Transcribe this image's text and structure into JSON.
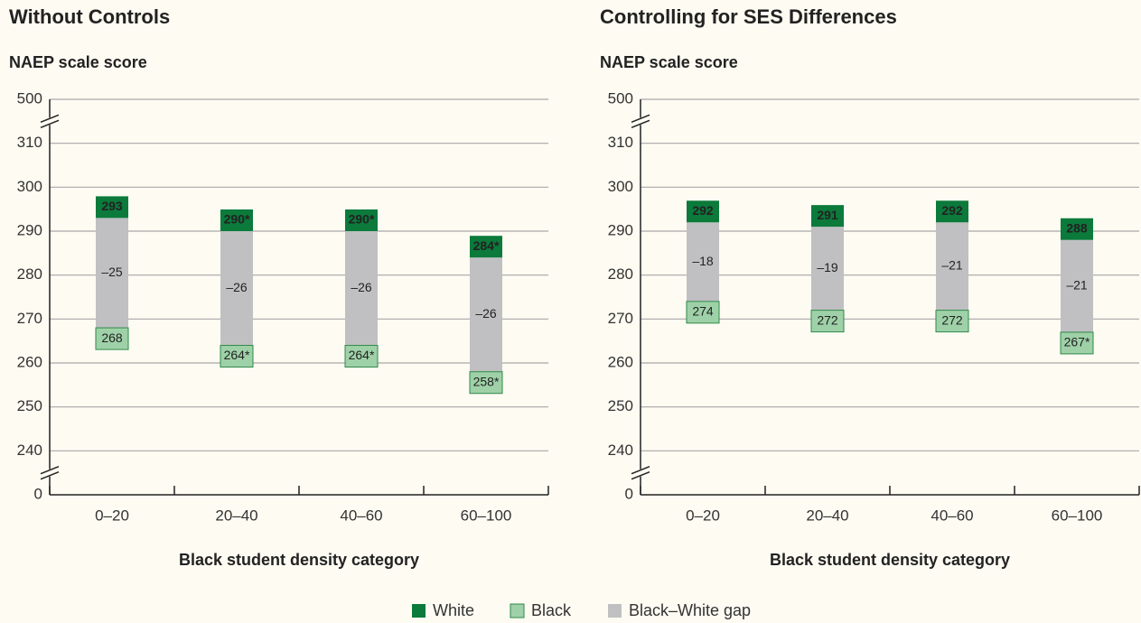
{
  "legend": [
    {
      "name": "White",
      "color": "#0b7a3b"
    },
    {
      "name": "Black",
      "color": "#9fd1a8"
    },
    {
      "name": "Black–White gap",
      "color": "#c0c0c2"
    }
  ],
  "chart_data": [
    {
      "type": "range",
      "title": "Without Controls",
      "ylabel": "NAEP scale score",
      "xlabel": "Black student density category",
      "categories": [
        "0–20",
        "20–40",
        "40–60",
        "60–100"
      ],
      "ylim": [
        0,
        500
      ],
      "yticks": [
        0,
        240,
        250,
        260,
        270,
        280,
        290,
        300,
        310,
        500
      ],
      "axis_breaks": true,
      "grid": true,
      "series": [
        {
          "values": [
            293,
            290,
            290,
            284
          ],
          "value_labels": [
            "293",
            "290*",
            "290*",
            "284*"
          ]
        },
        {
          "values": [
            268,
            264,
            264,
            258
          ],
          "value_labels": [
            "268",
            "264*",
            "264*",
            "258*"
          ]
        },
        {
          "values": [
            -25,
            -26,
            -26,
            -26
          ],
          "value_labels": [
            "–25",
            "–26",
            "–26",
            "–26"
          ]
        }
      ]
    },
    {
      "type": "range",
      "title": "Controlling for SES Differences",
      "ylabel": "NAEP scale score",
      "xlabel": "Black student density category",
      "categories": [
        "0–20",
        "20–40",
        "40–60",
        "60–100"
      ],
      "ylim": [
        0,
        500
      ],
      "yticks": [
        0,
        240,
        250,
        260,
        270,
        280,
        290,
        300,
        310,
        500
      ],
      "axis_breaks": true,
      "grid": true,
      "series": [
        {
          "values": [
            292,
            291,
            292,
            288
          ],
          "value_labels": [
            "292",
            "291",
            "292",
            "288"
          ]
        },
        {
          "values": [
            274,
            272,
            272,
            267
          ],
          "value_labels": [
            "274",
            "272",
            "272",
            "267*"
          ]
        },
        {
          "values": [
            -18,
            -19,
            -21,
            -21
          ],
          "value_labels": [
            "–18",
            "–19",
            "–21",
            "–21"
          ]
        }
      ]
    }
  ]
}
